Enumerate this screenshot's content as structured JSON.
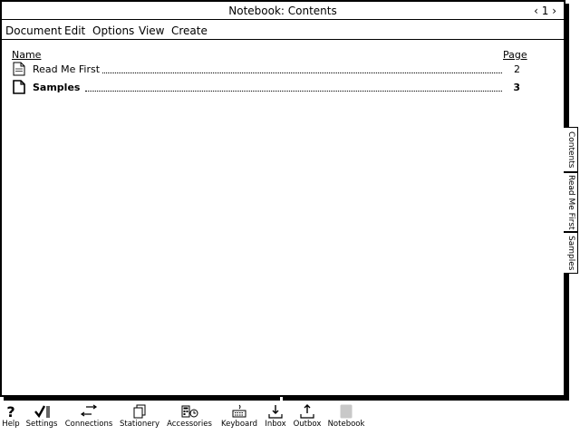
{
  "window": {
    "title": "Notebook: Contents",
    "page_nav": "‹ 1 ›"
  },
  "menu": [
    "Document",
    "Edit",
    "Options",
    "View",
    "Create"
  ],
  "columns": {
    "name": "Name",
    "page": "Page"
  },
  "entries": [
    {
      "name": "Read Me First",
      "page": "2",
      "bold": false,
      "icon": "document-icon"
    },
    {
      "name": "Samples",
      "page": "3",
      "bold": true,
      "icon": "document-icon"
    }
  ],
  "tabs": [
    "Contents",
    "Read Me First",
    "Samples"
  ],
  "toolbar": [
    {
      "label": "Help",
      "icon": "question-mark-icon"
    },
    {
      "label": "Settings",
      "icon": "checkmark-icon"
    },
    {
      "label": "Connections",
      "icon": "arrows-icon"
    },
    {
      "label": "Stationery",
      "icon": "stationery-icon"
    },
    {
      "label": "Accessories",
      "icon": "accessories-icon"
    },
    {
      "label": "Keyboard",
      "icon": "keyboard-icon"
    },
    {
      "label": "Inbox",
      "icon": "inbox-icon"
    },
    {
      "label": "Outbox",
      "icon": "outbox-icon"
    },
    {
      "label": "Notebook",
      "icon": "notebook-icon"
    }
  ]
}
